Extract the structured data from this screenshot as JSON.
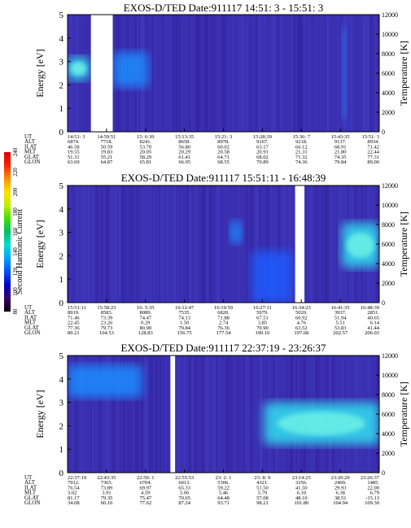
{
  "page": {
    "colorbar": {
      "label": "Second Harmonic Current",
      "ticks": [
        "240",
        "220",
        "200",
        "180",
        "160",
        "140",
        "120",
        "100",
        "80"
      ],
      "stops": [
        "#000000",
        "#3a006e",
        "#0000c8",
        "#0050ff",
        "#00a0ff",
        "#00e0d0",
        "#00c060",
        "#40e000",
        "#c0f000",
        "#ffe000",
        "#ff9000",
        "#ff2000",
        "#e00000"
      ]
    }
  },
  "chart_data": [
    {
      "type": "heatmap",
      "title": "EXOS-D/TED   Date:911117  14:51: 3 - 15:51: 3",
      "ylabel": "Energy [eV]",
      "y2label": "Temperature [K]",
      "ylim": [
        0,
        5
      ],
      "yticks": [
        "0",
        "1",
        "2",
        "3",
        "4",
        "5"
      ],
      "y2lim": [
        0,
        12000
      ],
      "y2ticks": [
        "0",
        "2000",
        "4000",
        "6000",
        "8000",
        "10000",
        "12000"
      ],
      "ephemeris_labels": [
        "UT",
        "ALT",
        "ILAT",
        "MLT",
        "GLAT",
        "GLON"
      ],
      "ephemeris": [
        [
          "14:51: 3",
          "14:59:51",
          "15: 6:39",
          "15:13:35",
          "15:21: 3",
          "15:28:39",
          "15:36: 7",
          "15:43:35",
          "15:51: 3"
        ],
        [
          "6874.",
          "7718.",
          "8241.",
          "8658.",
          "8978.",
          "9167.",
          "9218.",
          "9137.",
          "8934."
        ],
        [
          "46.58",
          "50.59",
          "53.70",
          "56.80",
          "60.02",
          "63.17",
          "66.12",
          "68.91",
          "71.42"
        ],
        [
          "19.55",
          "19.83",
          "20.05",
          "20.29",
          "20.58",
          "20.91",
          "21.31",
          "21.80",
          "22.44"
        ],
        [
          "51.31",
          "55.21",
          "58.29",
          "61.41",
          "64.71",
          "68.02",
          "71.32",
          "74.35",
          "77.31"
        ],
        [
          "63.69",
          "64.87",
          "65.81",
          "66.95",
          "68.55",
          "70.89",
          "74.36",
          "79.84",
          "89.00"
        ]
      ],
      "data_gaps_fraction": [
        [
          0.075,
          0.145
        ]
      ],
      "features": [
        {
          "x_frac": [
            0.0,
            0.07
          ],
          "energy": [
            2.2,
            3.2
          ],
          "level": "high"
        },
        {
          "x_frac": [
            0.145,
            0.26
          ],
          "energy": [
            1.9,
            3.4
          ],
          "level": "medium"
        },
        {
          "x_frac": [
            0.88,
            0.895
          ],
          "energy": [
            0.5,
            4.5
          ],
          "level": "medium"
        }
      ]
    },
    {
      "type": "heatmap",
      "title": "EXOS-D/TED   Date:911117  15:51:11 - 16:48:39",
      "ylabel": "Energy [eV]",
      "y2label": "Temperature [K]",
      "ylim": [
        0,
        5
      ],
      "yticks": [
        "0",
        "1",
        "2",
        "3",
        "4",
        "5"
      ],
      "y2lim": [
        0,
        12000
      ],
      "y2ticks": [
        "0",
        "2000",
        "4000",
        "6000",
        "8000",
        "10000",
        "12000"
      ],
      "ephemeris_labels": [
        "UT",
        "ALT",
        "ILAT",
        "MLT",
        "GLAT",
        "GLON"
      ],
      "ephemeris": [
        [
          "15:51:11",
          "15:58:23",
          "16: 5:35",
          "16:12:47",
          "16:19:59",
          "16:27:11",
          "16:34:23",
          "16:41:35",
          "16:48:39"
        ],
        [
          "8919.",
          "8583.",
          "8089.",
          "7535.",
          "6820.",
          "5979.",
          "5020.",
          "3937.",
          "2851."
        ],
        [
          "71.46",
          "73.39",
          "74.47",
          "74.13",
          "71.88",
          "67.51",
          "60.92",
          "51.94",
          "40.65"
        ],
        [
          "22.45",
          "23.26",
          "0.29",
          "1.50",
          "2.74",
          "3.85",
          "4.76",
          "5.51",
          "6.14"
        ],
        [
          "77.36",
          "79.73",
          "80.90",
          "79.84",
          "76.36",
          "70.90",
          "63.52",
          "53.83",
          "41.44"
        ],
        [
          "89.21",
          "104.53",
          "128.83",
          "156.75",
          "177.54",
          "190.10",
          "197.68",
          "202.57",
          "206.03"
        ]
      ],
      "data_gaps_fraction": [
        [
          0.73,
          0.76
        ]
      ],
      "features": [
        {
          "x_frac": [
            0.88,
            1.0
          ],
          "energy": [
            1.5,
            3.4
          ],
          "level": "high"
        },
        {
          "x_frac": [
            0.52,
            0.56
          ],
          "energy": [
            2.5,
            3.5
          ],
          "level": "medium"
        },
        {
          "x_frac": [
            0.59,
            0.72
          ],
          "energy": [
            0.0,
            2.2
          ],
          "level": "low"
        }
      ]
    },
    {
      "type": "heatmap",
      "title": "EXOS-D/TED   Date:911117  22:37:19 - 23:26:37",
      "ylabel": "Energy [eV]",
      "y2label": "Temperature [K]",
      "ylim": [
        0,
        5
      ],
      "yticks": [
        "0",
        "1",
        "2",
        "3",
        "4",
        "5"
      ],
      "y2lim": [
        0,
        12000
      ],
      "y2ticks": [
        "0",
        "2000",
        "4000",
        "6000",
        "8000",
        "10000",
        "12000"
      ],
      "ephemeris_labels": [
        "UT",
        "ALT",
        "ILAT",
        "MLT",
        "GLAT",
        "GLON"
      ],
      "ephemeris": [
        [
          "22:37:19",
          "22:43:35",
          "22:50: 1",
          "22:55:53",
          "23: 2: 1",
          "23: 8: 9",
          "23:14:25",
          "23:20:29",
          "23:26:37"
        ],
        [
          "7912.",
          "7365.",
          "6704.",
          "6013.",
          "5306.",
          "4321.",
          "3356.",
          "2400.",
          "1485."
        ],
        [
          "76.54",
          "73.89",
          "69.97",
          "65.33",
          "59.22",
          "51.50",
          "41.50",
          "29.93",
          "22.00"
        ],
        [
          "3.02",
          "3.91",
          "4.59",
          "5.06",
          "5.46",
          "5.79",
          "6.10",
          "6.38",
          "6.79"
        ],
        [
          "81.17",
          "79.35",
          "75.47",
          "70.65",
          "64.48",
          "57.08",
          "48.10",
          "38.51",
          "-15.13"
        ],
        [
          "34.08",
          "60.10",
          "77.62",
          "87.24",
          "93.71",
          "98.21",
          "101.80",
          "104.94",
          "109.30"
        ]
      ],
      "data_gaps_fraction": [
        [
          0.33,
          0.345
        ]
      ],
      "features": [
        {
          "x_frac": [
            0.63,
            1.0
          ],
          "energy": [
            1.2,
            3.0
          ],
          "level": "high"
        },
        {
          "x_frac": [
            0.0,
            0.24
          ],
          "energy": [
            3.2,
            4.6
          ],
          "level": "medium"
        }
      ]
    }
  ]
}
